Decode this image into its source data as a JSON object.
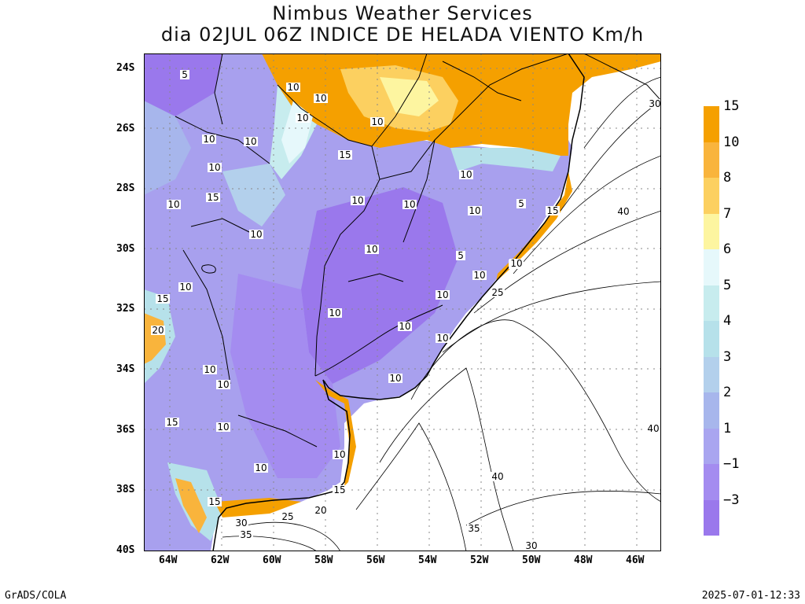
{
  "header": {
    "title_line1": "Nimbus Weather Services",
    "title_line2": "dia 02JUL 06Z INDICE DE HELADA VIENTO Km/h"
  },
  "map": {
    "lat_ticks": [
      "24S",
      "26S",
      "28S",
      "30S",
      "32S",
      "34S",
      "36S",
      "38S",
      "40S"
    ],
    "lon_ticks": [
      "64W",
      "62W",
      "60W",
      "58W",
      "56W",
      "54W",
      "52W",
      "50W",
      "48W",
      "46W"
    ],
    "gridlines": true,
    "contour_labels": {
      "land_five": "5",
      "land_ten": "10",
      "land_fifteen": "15",
      "land_twenty": "20",
      "ocean_25": "25",
      "ocean_30": "30",
      "ocean_35": "35",
      "ocean_40": "40"
    }
  },
  "colorbar": {
    "labels": [
      "15",
      "10",
      "8",
      "7",
      "6",
      "5",
      "4",
      "3",
      "2",
      "1",
      "−1",
      "−3"
    ],
    "colors": [
      "#f5a000",
      "#f9b43c",
      "#fcd060",
      "#fdf5a0",
      "#e6f8fb",
      "#c7ecee",
      "#b6e1ea",
      "#b3d0ec",
      "#a7b6ec",
      "#a9a5f0",
      "#a48cf0",
      "#9a78ec"
    ]
  },
  "footer": {
    "left": "GrADS/COLA",
    "right": "2025-07-01-12:33"
  },
  "palette": {
    "ocean": "#ffffff",
    "land_base": "#a8a0ee",
    "warm": "#f5a000",
    "coast_line": "#000000",
    "grid_dots": "#888888"
  }
}
